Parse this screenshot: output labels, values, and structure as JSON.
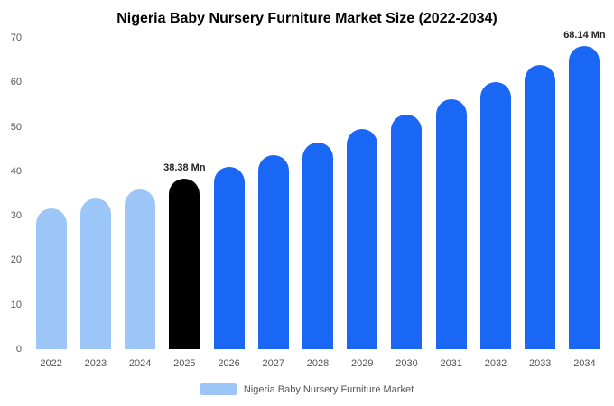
{
  "title": "Nigeria Baby Nursery Furniture Market Size (2022-2034)",
  "legend": {
    "label": "Nigeria Baby Nursery Furniture Market",
    "swatch_color": "#9dc6f8"
  },
  "colors": {
    "historical": "#9dc6f8",
    "base_year": "#000000",
    "forecast": "#1a66f5",
    "background": "#ffffff",
    "axis_text": "#555555"
  },
  "chart_data": {
    "type": "bar",
    "title": "Nigeria Baby Nursery Furniture Market Size (2022-2034)",
    "xlabel": "",
    "ylabel": "",
    "unit": "Mn",
    "ylim": [
      0,
      70
    ],
    "yticks": [
      0,
      10,
      20,
      30,
      40,
      50,
      60,
      70
    ],
    "grid": false,
    "legend_position": "bottom",
    "categories": [
      "2022",
      "2023",
      "2024",
      "2025",
      "2026",
      "2027",
      "2028",
      "2029",
      "2030",
      "2031",
      "2032",
      "2033",
      "2034"
    ],
    "values": [
      31.7,
      33.8,
      36.0,
      38.38,
      40.91,
      43.61,
      46.48,
      49.54,
      52.81,
      56.29,
      60.0,
      63.95,
      68.14
    ],
    "bar_colors": [
      "#9dc6f8",
      "#9dc6f8",
      "#9dc6f8",
      "#000000",
      "#1a66f5",
      "#1a66f5",
      "#1a66f5",
      "#1a66f5",
      "#1a66f5",
      "#1a66f5",
      "#1a66f5",
      "#1a66f5",
      "#1a66f5"
    ],
    "data_labels": [
      "",
      "",
      "",
      "38.38 Mn",
      "",
      "",
      "",
      "",
      "",
      "",
      "",
      "",
      "68.14 Mn"
    ]
  }
}
